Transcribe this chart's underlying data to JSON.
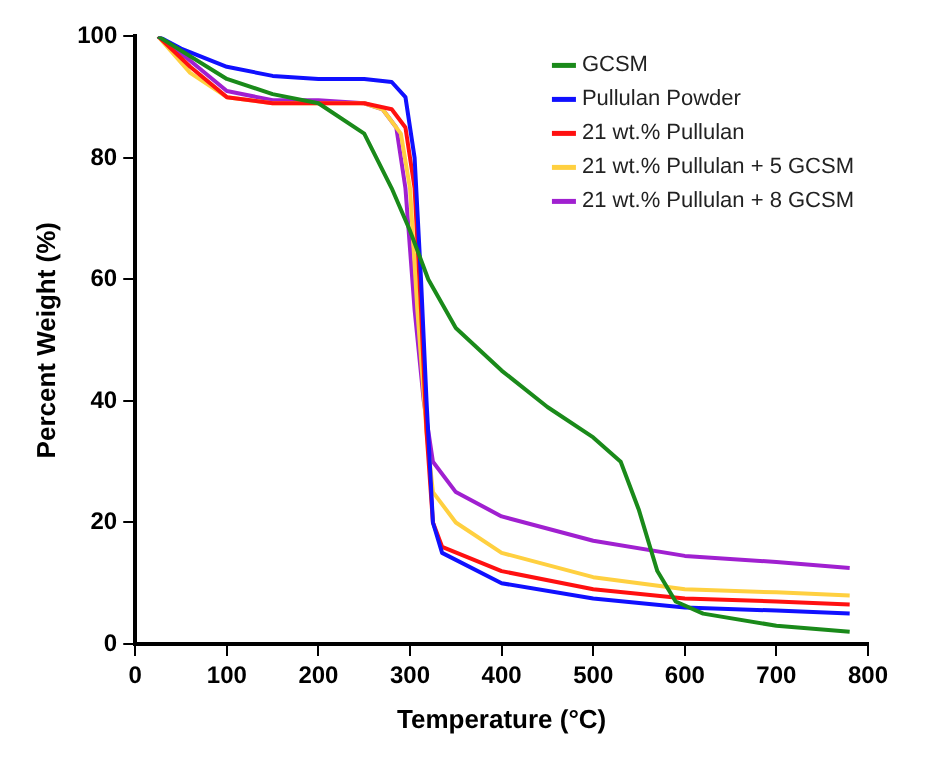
{
  "chart_data": {
    "type": "line",
    "xlabel": "Temperature (°C)",
    "ylabel": "Percent Weight (%)",
    "xlim": [
      0,
      800
    ],
    "xticks": [
      0,
      100,
      200,
      300,
      400,
      500,
      600,
      700,
      800
    ],
    "ylim": [
      0,
      100
    ],
    "yticks": [
      0,
      20,
      40,
      60,
      80,
      100
    ],
    "grid": false,
    "legend": "top right",
    "marker": "none",
    "line_style": "solid",
    "series": [
      {
        "name": "GCSM",
        "color": "#1a8a1a",
        "x": [
          25,
          100,
          150,
          200,
          250,
          280,
          300,
          320,
          350,
          400,
          450,
          500,
          530,
          550,
          570,
          590,
          620,
          700,
          780
        ],
        "values": [
          100,
          93,
          90.5,
          89,
          84,
          75,
          68,
          60,
          52,
          45,
          39,
          34,
          30,
          22,
          12,
          7,
          5,
          3,
          2
        ]
      },
      {
        "name": "Pullulan Powder",
        "color": "#1010ff",
        "x": [
          25,
          50,
          100,
          150,
          200,
          250,
          280,
          295,
          305,
          312,
          318,
          325,
          335,
          400,
          500,
          600,
          700,
          780
        ],
        "values": [
          100,
          98,
          95,
          93.5,
          93,
          93,
          92.5,
          90,
          80,
          60,
          40,
          20,
          15,
          10,
          7.5,
          6,
          5.5,
          5
        ]
      },
      {
        "name": "21 wt.% Pullulan",
        "color": "#ff1010",
        "x": [
          25,
          60,
          100,
          150,
          200,
          250,
          280,
          295,
          305,
          312,
          318,
          325,
          335,
          400,
          500,
          600,
          700,
          780
        ],
        "values": [
          100,
          95,
          90,
          89,
          89,
          89,
          88,
          85,
          75,
          55,
          35,
          20,
          16,
          12,
          9,
          7.5,
          7,
          6.5
        ]
      },
      {
        "name": "21 wt.% Pullulan + 5 GCSM",
        "color": "#ffd040",
        "x": [
          25,
          60,
          100,
          150,
          200,
          250,
          270,
          290,
          300,
          308,
          318,
          325,
          350,
          400,
          500,
          600,
          700,
          780
        ],
        "values": [
          100,
          94,
          90,
          89,
          89,
          89,
          88,
          84,
          75,
          55,
          35,
          25,
          20,
          15,
          11,
          9,
          8.5,
          8
        ]
      },
      {
        "name": "21 wt.% Pullulan + 8 GCSM",
        "color": "#a020d0",
        "x": [
          25,
          60,
          100,
          150,
          200,
          250,
          270,
          285,
          295,
          305,
          315,
          325,
          350,
          400,
          500,
          600,
          700,
          780
        ],
        "values": [
          100,
          96,
          91,
          89.5,
          89.5,
          89,
          88,
          85,
          75,
          55,
          40,
          30,
          25,
          21,
          17,
          14.5,
          13.5,
          12.5
        ]
      }
    ]
  }
}
